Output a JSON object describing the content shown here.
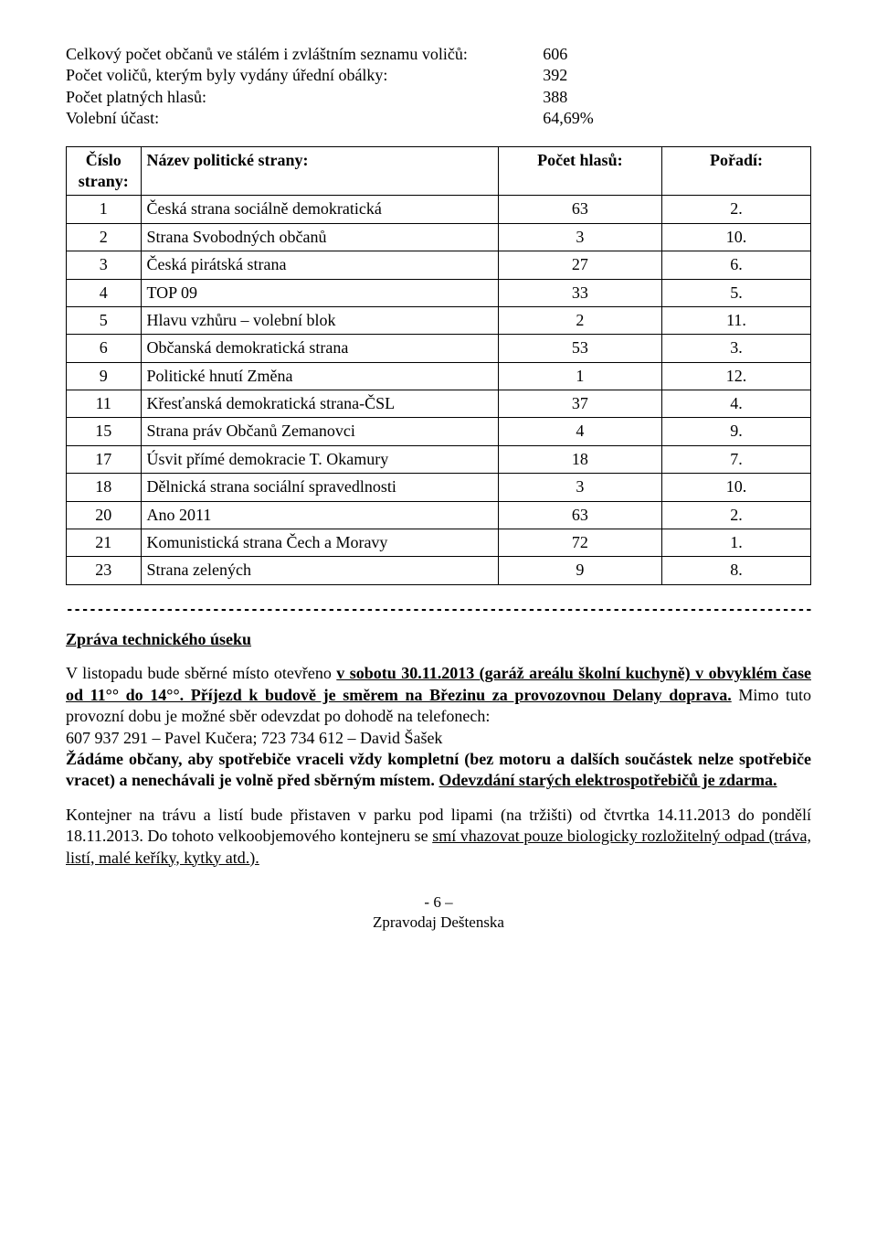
{
  "stats": {
    "rows": [
      {
        "label": "Celkový počet občanů ve stálém i zvláštním seznamu voličů:",
        "value": "606"
      },
      {
        "label": "Počet voličů, kterým byly vydány úřední obálky:",
        "value": "392"
      },
      {
        "label": "Počet platných hlasů:",
        "value": "388"
      },
      {
        "label": "Volební účast:",
        "value": "64,69%"
      }
    ]
  },
  "results": {
    "headers": {
      "num": "Číslo strany:",
      "name": "Název politické strany:",
      "votes": "Počet hlasů:",
      "rank": "Pořadí:"
    },
    "rows": [
      {
        "num": "1",
        "name": "Česká strana sociálně demokratická",
        "votes": "63",
        "rank": "2."
      },
      {
        "num": "2",
        "name": "Strana Svobodných občanů",
        "votes": "3",
        "rank": "10."
      },
      {
        "num": "3",
        "name": "Česká pirátská strana",
        "votes": "27",
        "rank": "6."
      },
      {
        "num": "4",
        "name": "TOP 09",
        "votes": "33",
        "rank": "5."
      },
      {
        "num": "5",
        "name": "Hlavu vzhůru – volební blok",
        "votes": "2",
        "rank": "11."
      },
      {
        "num": "6",
        "name": "Občanská demokratická strana",
        "votes": "53",
        "rank": "3."
      },
      {
        "num": "9",
        "name": "Politické hnutí Změna",
        "votes": "1",
        "rank": "12."
      },
      {
        "num": "11",
        "name": "Křesťanská demokratická strana-ČSL",
        "votes": "37",
        "rank": "4."
      },
      {
        "num": "15",
        "name": "Strana práv Občanů Zemanovci",
        "votes": "4",
        "rank": "9."
      },
      {
        "num": "17",
        "name": "Úsvit přímé demokracie T. Okamury",
        "votes": "18",
        "rank": "7."
      },
      {
        "num": "18",
        "name": "Dělnická strana sociální spravedlnosti",
        "votes": "3",
        "rank": "10."
      },
      {
        "num": "20",
        "name": "Ano 2011",
        "votes": "63",
        "rank": "2."
      },
      {
        "num": "21",
        "name": "Komunistická strana Čech a Moravy",
        "votes": "72",
        "rank": "1."
      },
      {
        "num": "23",
        "name": "Strana zelených",
        "votes": "9",
        "rank": "8."
      }
    ]
  },
  "technical": {
    "title": "Zpráva technického úseku",
    "para1": {
      "prefix": "V listopadu bude sběrné místo otevřeno ",
      "bold_under_1": "v sobotu 30.11.2013 (garáž areálu školní kuchyně) v obvyklém čase od 11°° do 14°°. Příjezd k budově je směrem na Březinu za provozovnou Delany doprava.",
      "after_1": " Mimo tuto provozní dobu je možné sběr odevzdat po dohodě na telefonech:",
      "contacts": "607 937 291 – Pavel Kučera; 723 734 612 – David Šašek",
      "bold_2": "Žádáme občany, aby spotřebiče vraceli vždy kompletní (bez motoru a dalších součástek nelze spotřebiče vracet) a nenechávali je volně před sběrným místem. ",
      "bold_under_3": "Odevzdání starých elektrospotřebičů je zdarma."
    },
    "para2": {
      "prefix": "Kontejner na trávu a listí bude přistaven v parku pod lipami (na tržišti) od čtvrtka 14.11.2013 do pondělí 18.11.2013. Do tohoto velkoobjemového kontejneru se ",
      "under_1": "smí vhazovat pouze biologicky rozložitelný odpad (tráva, listí, malé keříky, kytky atd.)."
    }
  },
  "footer": {
    "page": "- 6 –",
    "title": "Zpravodaj Deštenska"
  },
  "divider_text": "-------------------------------------------------------------------------------------------------------------"
}
